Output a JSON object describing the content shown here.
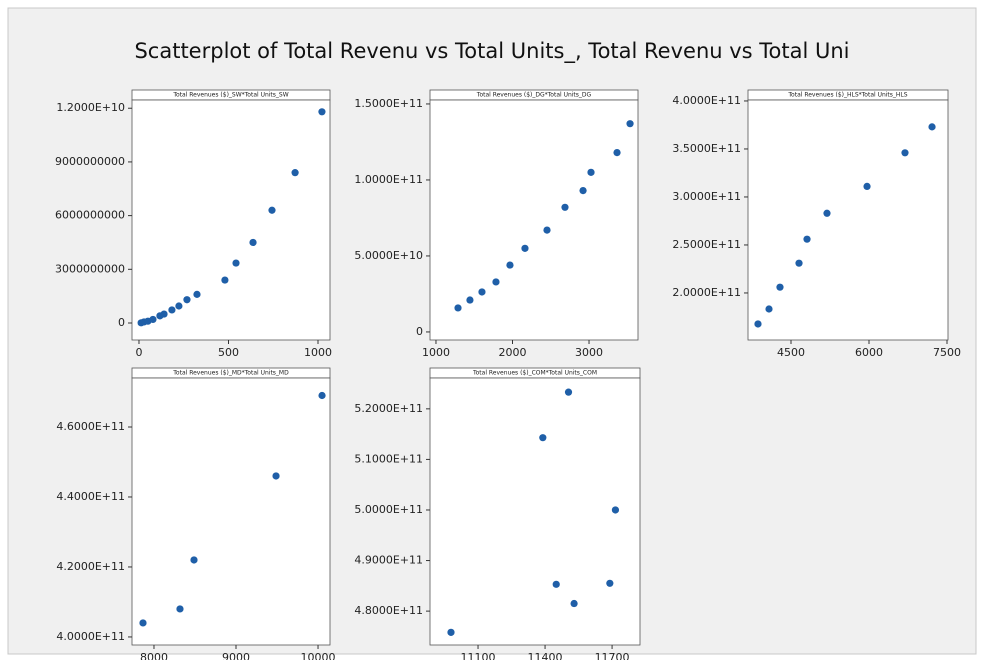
{
  "title": "Scatterplot of Total Revenu vs Total Units_, Total Revenu vs Total Uni",
  "chart_data": [
    {
      "type": "scatter",
      "title": "Total Revenues ($)_SW*Total Units_SW",
      "color": "#1f5fa8",
      "x": [
        12,
        28,
        50,
        78,
        117,
        140,
        184,
        223,
        268,
        324,
        480,
        542,
        637,
        743,
        872,
        1022
      ],
      "values": [
        10000000,
        60000000,
        100000000,
        200000000,
        400000000,
        500000000,
        730000000,
        950000000,
        1300000000,
        1600000000,
        2400000000,
        3350000000,
        4500000000,
        6300000000,
        8400000000,
        11800000000
      ],
      "xlim": [
        -39,
        1067
      ],
      "ylim": [
        -950000000,
        12460000000
      ],
      "xticks": [
        0,
        500,
        1000
      ],
      "yticks": [
        0,
        3000000000,
        6000000000,
        9000000000,
        {
          "value": 12000000000,
          "label": "1.2000E+10"
        }
      ]
    },
    {
      "type": "scatter",
      "title": "Total Revenues ($)_DG*Total Units_DG",
      "color": "#1f5fa8",
      "x": [
        1288,
        1444,
        1601,
        1784,
        1967,
        2163,
        2451,
        2686,
        2922,
        3026,
        3366,
        3536
      ],
      "values": [
        15800000000,
        21000000000,
        26300000000,
        32900000000,
        44000000000,
        55000000000,
        67000000000,
        82000000000,
        93000000000,
        105000000000,
        118000000000,
        137000000000
      ],
      "xlim": [
        922,
        3640
      ],
      "ylim": [
        -5300000000,
        152600000000
      ],
      "xticks": [
        1000,
        2000,
        3000
      ],
      "yticks": [
        0,
        {
          "value": 50000000000,
          "label": "5.0000E+10"
        },
        {
          "value": 100000000000,
          "label": "1.0000E+11"
        },
        {
          "value": 150000000000,
          "label": "1.5000E+11"
        }
      ]
    },
    {
      "type": "scatter",
      "title": "Total Revenues ($)_HLS*Total Units_HLS",
      "color": "#1f5fa8",
      "x": [
        3865,
        4077,
        4288,
        4654,
        4808,
        5192,
        5962,
        6692,
        7212
      ],
      "values": [
        167700000000,
        183300000000,
        206000000000,
        231000000000,
        256000000000,
        283000000000,
        311000000000,
        346000000000,
        373000000000
      ],
      "xlim": [
        3673,
        7519
      ],
      "ylim": [
        151000000000,
        401000000000
      ],
      "xticks": [
        4500,
        6000,
        7500
      ],
      "yticks": [
        {
          "value": 200000000000,
          "label": "2.0000E+11"
        },
        {
          "value": 250000000000,
          "label": "2.5000E+11"
        },
        {
          "value": 300000000000,
          "label": "3.0000E+11"
        },
        {
          "value": 350000000000,
          "label": "3.5000E+11"
        },
        {
          "value": 400000000000,
          "label": "4.0000E+11"
        }
      ]
    },
    {
      "type": "scatter",
      "title": "Total Revenues ($)_MD*Total Units_MD",
      "color": "#1f5fa8",
      "x": [
        7866,
        8317,
        8488,
        9488,
        10049
      ],
      "values": [
        404000000000,
        408000000000,
        422000000000,
        446000000000,
        469000000000
      ],
      "xlim": [
        7732,
        10146
      ],
      "ylim": [
        397700000000,
        474000000000
      ],
      "xticks": [
        8000,
        9000,
        10000
      ],
      "yticks": [
        {
          "value": 400000000000,
          "label": "4.0000E+11"
        },
        {
          "value": 420000000000,
          "label": "4.2000E+11"
        },
        {
          "value": 440000000000,
          "label": "4.4000E+11"
        },
        {
          "value": 460000000000,
          "label": "4.6000E+11"
        }
      ]
    },
    {
      "type": "scatter",
      "title": "Total Revenues ($)_COM*Total Units_COM",
      "color": "#1f5fa8",
      "x": [
        10979,
        11390,
        11505,
        11450,
        11530,
        11690,
        11715
      ],
      "values": [
        475800000000,
        514300000000,
        523300000000,
        485300000000,
        481500000000,
        485500000000,
        500000000000
      ],
      "xlim": [
        10885,
        11825
      ],
      "ylim": [
        473300000000,
        526100000000
      ],
      "xticks": [
        11100,
        11400,
        11700
      ],
      "yticks": [
        {
          "value": 480000000000,
          "label": "4.8000E+11"
        },
        {
          "value": 490000000000,
          "label": "4.9000E+11"
        },
        {
          "value": 500000000000,
          "label": "5.0000E+11"
        },
        {
          "value": 510000000000,
          "label": "5.1000E+11"
        },
        {
          "value": 520000000000,
          "label": "5.2000E+11"
        }
      ]
    }
  ]
}
